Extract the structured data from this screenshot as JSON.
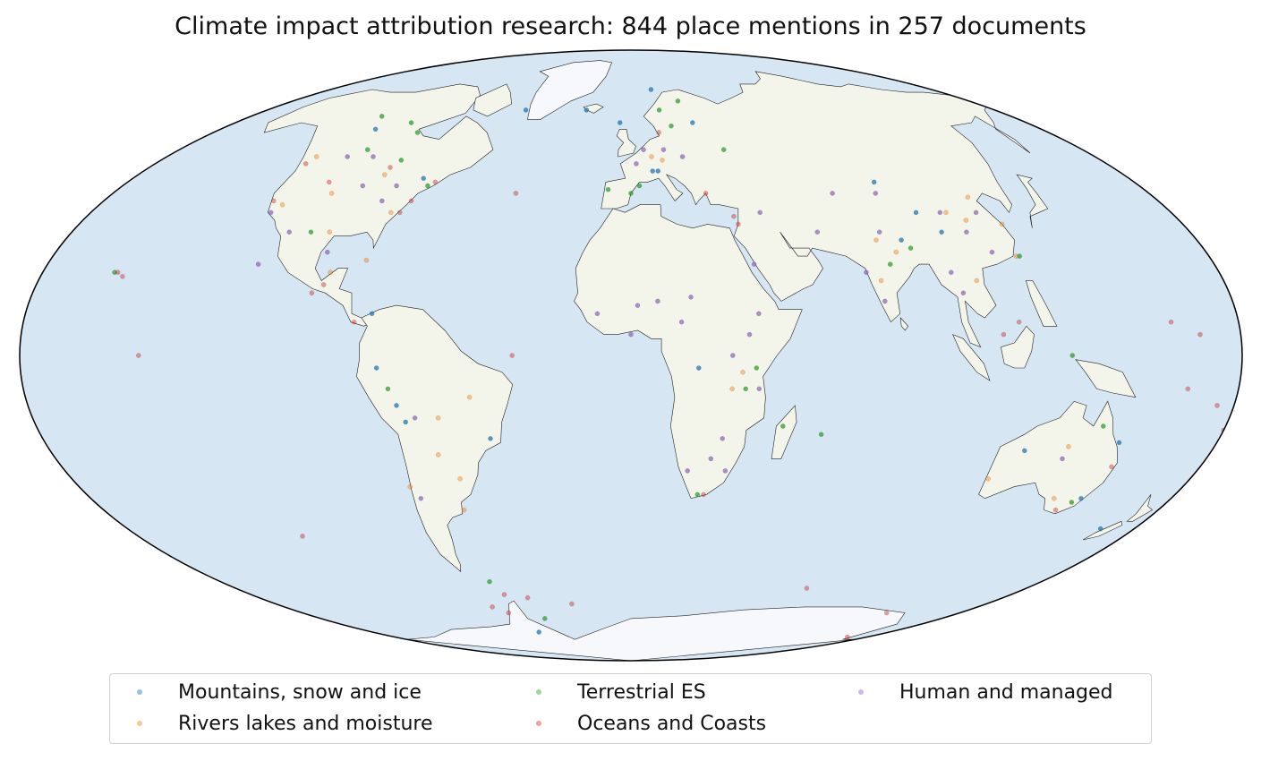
{
  "title": "Climate impact attribution research: 844 place mentions in 257 documents",
  "legend": {
    "items": [
      {
        "label": "Mountains, snow and ice",
        "color": "#1f77b4"
      },
      {
        "label": "Rivers lakes and moisture",
        "color": "#ff7f0e"
      },
      {
        "label": "Terrestrial ES",
        "color": "#2ca02c"
      },
      {
        "label": "Oceans and Coasts",
        "color": "#d62728"
      },
      {
        "label": "Human and managed",
        "color": "#9467bd"
      }
    ]
  },
  "chart_data": {
    "type": "scatter",
    "projection": "mollweide",
    "colors": {
      "ocean": "#d6e6f2",
      "land": "#f3f5ea",
      "ice": "#f6f8fb"
    },
    "series": [
      {
        "name": "Mountains, snow and ice",
        "color": "#1f77b4",
        "points": [
          [
            -112,
            58
          ],
          [
            -75,
            44
          ],
          [
            -52,
            64
          ],
          [
            8,
            46
          ],
          [
            10,
            46
          ],
          [
            86,
            28
          ],
          [
            87,
            43
          ],
          [
            95,
            35
          ],
          [
            100,
            30
          ],
          [
            -77,
            10
          ],
          [
            -68,
            -16
          ],
          [
            -70,
            -12
          ],
          [
            -75,
            -3
          ],
          [
            -43,
            -20
          ],
          [
            -22,
            64
          ],
          [
            20,
            -3
          ],
          [
            168,
            -43
          ],
          [
            28,
            60
          ],
          [
            -64,
            -75
          ],
          [
            122,
            -23
          ],
          [
            150,
            -21
          ],
          [
            150,
            -35
          ],
          [
            -5,
            60
          ],
          [
            12,
            71
          ]
        ]
      },
      {
        "name": "Rivers lakes and moisture",
        "color": "#ff7f0e",
        "points": [
          [
            -122,
            50
          ],
          [
            -104,
            40
          ],
          [
            -90,
            45
          ],
          [
            -80,
            35
          ],
          [
            -118,
            37
          ],
          [
            -97,
            30
          ],
          [
            -82,
            23
          ],
          [
            -58,
            -15
          ],
          [
            -57,
            -38
          ],
          [
            -72,
            -32
          ],
          [
            -60,
            -24
          ],
          [
            -48,
            -10
          ],
          [
            8,
            50
          ],
          [
            12,
            49
          ],
          [
            30,
            -8
          ],
          [
            78,
            28
          ],
          [
            83,
            25
          ],
          [
            105,
            35
          ],
          [
            110,
            33
          ],
          [
            116,
            39
          ],
          [
            120,
            24
          ],
          [
            105,
            18
          ],
          [
            76,
            18
          ],
          [
            121,
            32
          ],
          [
            141,
            -35
          ],
          [
            135,
            -22
          ],
          [
            115,
            -30
          ],
          [
            -92,
            20
          ],
          [
            -55,
            -30
          ],
          [
            33,
            -4
          ]
        ]
      },
      {
        "name": "Terrestrial ES",
        "color": "#2ca02c",
        "points": [
          [
            -118,
            62
          ],
          [
            -100,
            60
          ],
          [
            -88,
            49
          ],
          [
            -103,
            30
          ],
          [
            -72,
            42
          ],
          [
            -8,
            41
          ],
          [
            0,
            40
          ],
          [
            3,
            42
          ],
          [
            18,
            59
          ],
          [
            14,
            64
          ],
          [
            25,
            67
          ],
          [
            37,
            52
          ],
          [
            37,
            -3
          ],
          [
            46,
            -17
          ],
          [
            58,
            -19
          ],
          [
            143,
            -17
          ],
          [
            148,
            -36
          ],
          [
            -72,
            -8
          ],
          [
            -62,
            -58
          ],
          [
            -50,
            -70
          ],
          [
            -158,
            20
          ],
          [
            22,
            -34
          ],
          [
            80,
            22
          ],
          [
            88,
            26
          ],
          [
            -105,
            52
          ],
          [
            -92,
            57
          ],
          [
            34,
            -8
          ],
          [
            130,
            0
          ],
          [
            121,
            24
          ]
        ]
      },
      {
        "name": "Oceans and Coasts",
        "color": "#d62728",
        "points": [
          [
            -123,
            48
          ],
          [
            -122,
            38
          ],
          [
            -70,
            43
          ],
          [
            -75,
            38
          ],
          [
            -77,
            35
          ],
          [
            -157,
            20
          ],
          [
            -155,
            19
          ],
          [
            -145,
            0
          ],
          [
            -120,
            -45
          ],
          [
            -40,
            40
          ],
          [
            -35,
            0
          ],
          [
            -93,
            17
          ],
          [
            -82,
            8
          ],
          [
            35,
            32
          ],
          [
            34,
            34
          ],
          [
            26,
            40
          ],
          [
            12,
            57
          ],
          [
            145,
            -38
          ],
          [
            152,
            -27
          ],
          [
            165,
            -8
          ],
          [
            175,
            -12
          ],
          [
            168,
            5
          ],
          [
            160,
            8
          ],
          [
            180,
            -18
          ],
          [
            115,
            8
          ],
          [
            110,
            5
          ],
          [
            -72,
            -66
          ],
          [
            -60,
            -62
          ],
          [
            -67,
            -68
          ],
          [
            -96,
            15
          ],
          [
            24,
            -34
          ],
          [
            -90,
            47
          ],
          [
            -108,
            43
          ],
          [
            165,
            -77
          ],
          [
            -50,
            -63
          ],
          [
            -30,
            -65
          ],
          [
            140,
            -68
          ],
          [
            80,
            -60
          ]
        ]
      },
      {
        "name": "Human and managed",
        "color": "#9467bd",
        "points": [
          [
            -100,
            50
          ],
          [
            -95,
            42
          ],
          [
            -110,
            30
          ],
          [
            -85,
            38
          ],
          [
            -95,
            25
          ],
          [
            -115,
            22
          ],
          [
            2,
            48
          ],
          [
            5,
            52
          ],
          [
            13,
            52
          ],
          [
            20,
            50
          ],
          [
            38,
            22
          ],
          [
            18,
            14
          ],
          [
            15,
            8
          ],
          [
            8,
            13
          ],
          [
            2,
            12
          ],
          [
            -10,
            10
          ],
          [
            35,
            5
          ],
          [
            38,
            10
          ],
          [
            30,
            0
          ],
          [
            38,
            -8
          ],
          [
            28,
            -20
          ],
          [
            25,
            -25
          ],
          [
            30,
            -28
          ],
          [
            18,
            -28
          ],
          [
            103,
            35
          ],
          [
            115,
            35
          ],
          [
            113,
            25
          ],
          [
            108,
            30
          ],
          [
            80,
            30
          ],
          [
            76,
            13
          ],
          [
            72,
            20
          ],
          [
            135,
            -25
          ],
          [
            0,
            5
          ],
          [
            43,
            35
          ],
          [
            60,
            30
          ],
          [
            100,
            15
          ],
          [
            98,
            20
          ],
          [
            85,
            40
          ],
          [
            70,
            40
          ],
          [
            -70,
            -35
          ],
          [
            -65,
            -15
          ],
          [
            -110,
            50
          ],
          [
            -83,
            42
          ],
          [
            -120,
            35
          ]
        ]
      }
    ]
  }
}
